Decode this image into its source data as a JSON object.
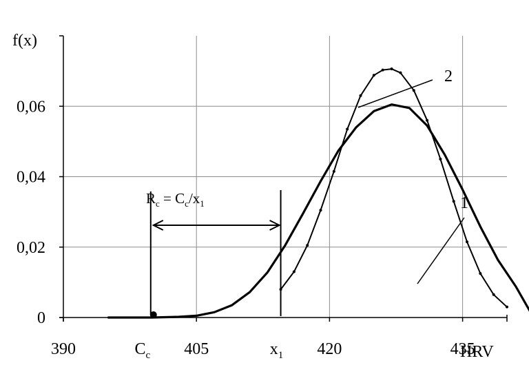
{
  "chart_data": {
    "type": "line",
    "ylabel": "f(x)",
    "xlabel": "HRV",
    "xlim": [
      390,
      440
    ],
    "ylim": [
      0,
      0.08
    ],
    "x_ticks": [
      390,
      405,
      420,
      435
    ],
    "x_tick_labels": [
      "390",
      "405",
      "420",
      "435"
    ],
    "y_ticks": [
      0,
      0.02,
      0.04,
      0.06
    ],
    "y_tick_labels": [
      "0",
      "0,02",
      "0,04",
      "0,06"
    ],
    "grid": true,
    "series": [
      {
        "name": "1",
        "x": [
          395,
          400,
          403,
          405,
          407,
          409,
          411,
          413,
          415,
          417,
          419,
          421,
          423,
          425,
          427,
          429,
          431,
          433,
          435,
          437,
          439,
          441,
          443
        ],
        "y": [
          0.0,
          0.0,
          0.0002,
          0.0005,
          0.0015,
          0.0035,
          0.0072,
          0.0128,
          0.0205,
          0.0295,
          0.0387,
          0.0474,
          0.054,
          0.0586,
          0.0605,
          0.0595,
          0.0545,
          0.0462,
          0.0363,
          0.0258,
          0.0163,
          0.0088,
          0.0
        ]
      },
      {
        "name": "2",
        "x": [
          414.5,
          416,
          417.5,
          419,
          420.5,
          422,
          423.5,
          425,
          426,
          427,
          428,
          429.5,
          431,
          432.5,
          434,
          435.5,
          437,
          438.5,
          440
        ],
        "y": [
          0.008,
          0.013,
          0.0205,
          0.0305,
          0.0415,
          0.0535,
          0.063,
          0.0688,
          0.0703,
          0.0706,
          0.0695,
          0.0645,
          0.056,
          0.045,
          0.033,
          0.0215,
          0.0125,
          0.0065,
          0.003
        ]
      }
    ],
    "annotations": {
      "cc_label": "C",
      "cc_sub": "c",
      "cc_x": 400,
      "x1_label": "x",
      "x1_sub": "1",
      "x1_x": 414.5,
      "rc_parts": [
        {
          "t": "R",
          "s": false
        },
        {
          "t": "c",
          "s": true
        },
        {
          "t": " = C",
          "s": false
        },
        {
          "t": "c",
          "s": true
        },
        {
          "t": "/x",
          "s": false
        },
        {
          "t": "1",
          "s": true
        }
      ],
      "label_1": "1",
      "label_2": "2"
    }
  }
}
